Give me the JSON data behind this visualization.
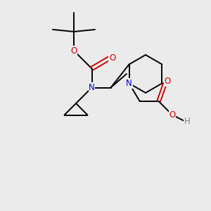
{
  "bg_color": "#ebebeb",
  "line_color": "#000000",
  "n_color": "#0000cc",
  "o_color": "#cc0000",
  "h_color": "#778899",
  "font_size": 8.5,
  "line_width": 1.4,
  "figsize": [
    3.0,
    3.0
  ],
  "dpi": 100,
  "xlim": [
    0,
    10
  ],
  "ylim": [
    0,
    10
  ]
}
